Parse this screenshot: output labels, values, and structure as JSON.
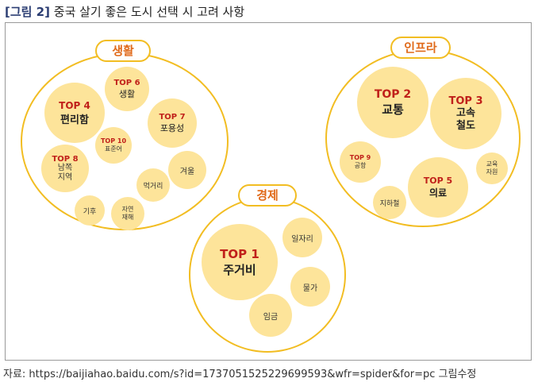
{
  "title": {
    "tag": "[그림 2]",
    "text": "중국 살기 좋은 도시 선택 시 고려 사항"
  },
  "groups": {
    "life": "생활",
    "infra": "인프라",
    "economy": "경제"
  },
  "bubbles": {
    "t4": {
      "rank": "TOP 4",
      "label": "편리함"
    },
    "t6": {
      "rank": "TOP 6",
      "label": "생활"
    },
    "t7": {
      "rank": "TOP 7",
      "label": "포용성"
    },
    "t10": {
      "rank": "TOP 10",
      "label": "표준어"
    },
    "t8": {
      "rank": "TOP 8",
      "label": "남쪽\n지역"
    },
    "winter": {
      "label": "겨울"
    },
    "food": {
      "label": "먹거리"
    },
    "climate": {
      "label": "기후"
    },
    "nature": {
      "label": "자연\n재해"
    },
    "t2": {
      "rank": "TOP 2",
      "label": "교통"
    },
    "t3": {
      "rank": "TOP 3",
      "label": "고속\n철도"
    },
    "t9": {
      "rank": "TOP 9",
      "label": "공항"
    },
    "t5": {
      "rank": "TOP 5",
      "label": "의료"
    },
    "education": {
      "label": "교육\n자원"
    },
    "subway": {
      "label": "지하철"
    },
    "t1": {
      "rank": "TOP 1",
      "label": "주거비"
    },
    "jobs": {
      "label": "일자리"
    },
    "prices": {
      "label": "물가"
    },
    "wages": {
      "label": "임금"
    }
  },
  "source": "자료: https://baijiahao.baidu.com/s?id=1737051525229699593&wfr=spider&for=pc 그림수정"
}
